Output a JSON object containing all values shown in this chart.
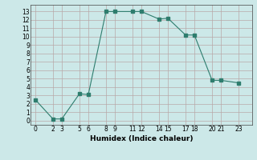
{
  "x": [
    0,
    2,
    3,
    5,
    6,
    8,
    9,
    11,
    12,
    14,
    15,
    17,
    18,
    20,
    21,
    23
  ],
  "y": [
    2.5,
    0.2,
    0.2,
    3.2,
    3.1,
    13.0,
    13.0,
    13.0,
    13.0,
    12.1,
    12.2,
    10.2,
    10.2,
    4.8,
    4.8,
    4.5
  ],
  "title": "",
  "xlabel": "Humidex (Indice chaleur)",
  "ylabel": "",
  "xlim": [
    -0.5,
    24.5
  ],
  "ylim": [
    -0.5,
    13.8
  ],
  "xticks": [
    0,
    2,
    3,
    5,
    6,
    8,
    9,
    11,
    12,
    14,
    15,
    17,
    18,
    20,
    21,
    23
  ],
  "yticks": [
    0,
    1,
    2,
    3,
    4,
    5,
    6,
    7,
    8,
    9,
    10,
    11,
    12,
    13
  ],
  "line_color": "#2e7d6e",
  "marker": "s",
  "marker_size": 2.5,
  "bg_color": "#cce8e8",
  "grid_color": "#b8a8a8",
  "fig_bg": "#cce8e8"
}
